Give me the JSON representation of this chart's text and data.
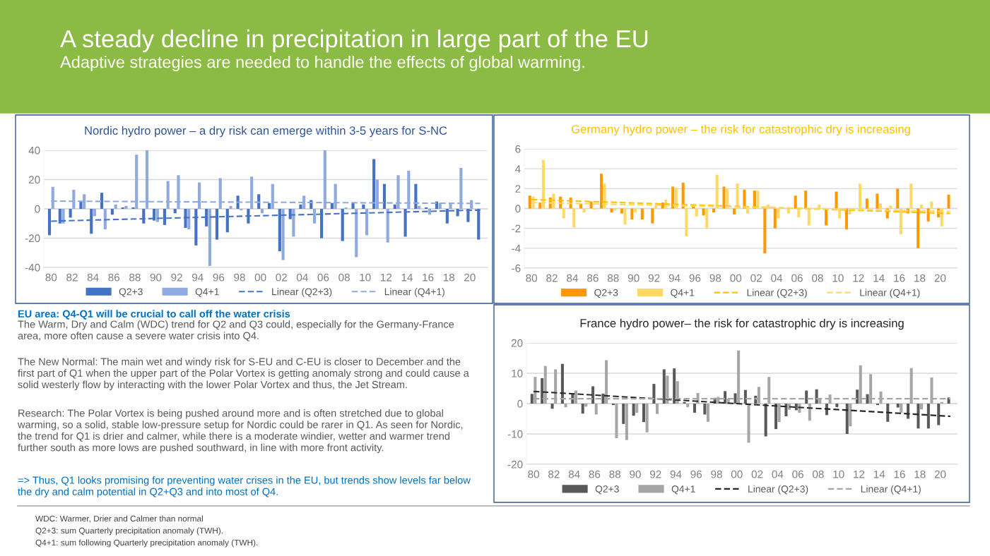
{
  "chart_data": [
    {
      "type": "other",
      "title": "A steady decline in precipitation in large part of the EU",
      "subtitle": "Adaptive strategies are needed to handle the effects of global warming."
    },
    {
      "type": "bar",
      "title": "Nordic hydro power – a dry risk can emerge within 3-5 years for S-NC",
      "categories": [
        "80",
        null,
        "82",
        null,
        "84",
        null,
        "86",
        null,
        "88",
        null,
        "90",
        null,
        "92",
        null,
        "94",
        null,
        "96",
        null,
        "98",
        null,
        "00",
        null,
        "02",
        null,
        "04",
        null,
        "06",
        null,
        "08",
        null,
        "10",
        null,
        "12",
        null,
        "14",
        null,
        "16",
        null,
        "18",
        null,
        "20",
        null
      ],
      "series": [
        {
          "name": "Q2+3",
          "color": "#4472c4",
          "values": [
            -18,
            -10,
            -6,
            5,
            -17,
            11,
            -4,
            1,
            1,
            -10,
            -8,
            -11,
            -3,
            -13,
            -25,
            -12,
            -21,
            -16,
            9,
            -10,
            10,
            4,
            -29,
            -7,
            3,
            6,
            -20,
            4,
            -22,
            4,
            3,
            34,
            17,
            3,
            -19,
            17,
            1,
            5,
            -10,
            -5,
            -9,
            -21
          ]
        },
        {
          "name": "Q4+1",
          "color": "#8faadc",
          "values": [
            15,
            -10,
            13,
            10,
            -5,
            -14,
            3,
            2,
            37,
            40,
            -9,
            19,
            23,
            -14,
            18,
            -39,
            21,
            2,
            -1,
            22,
            -3,
            17,
            -35,
            -19,
            9,
            -10,
            40,
            17,
            1,
            -33,
            -18,
            20,
            -23,
            23,
            26,
            2,
            -4,
            4,
            4,
            28,
            6,
            null
          ]
        },
        {
          "name": "Linear (Q2+3)",
          "type": "line",
          "line_style": "dashed",
          "color": "#4472c4",
          "values": [
            -8.4,
            null,
            null,
            null,
            null,
            null,
            null,
            null,
            null,
            null,
            null,
            null,
            null,
            null,
            null,
            null,
            null,
            null,
            null,
            null,
            null,
            null,
            null,
            null,
            null,
            null,
            null,
            null,
            null,
            null,
            null,
            null,
            null,
            null,
            null,
            null,
            null,
            null,
            null,
            null,
            null,
            -0.8
          ]
        },
        {
          "name": "Linear (Q4+1)",
          "type": "line",
          "line_style": "dashed",
          "color": "#8faadc",
          "values": [
            5.3,
            null,
            null,
            null,
            null,
            null,
            null,
            null,
            null,
            null,
            null,
            null,
            null,
            null,
            null,
            null,
            null,
            null,
            null,
            null,
            null,
            null,
            null,
            null,
            null,
            null,
            null,
            null,
            null,
            null,
            null,
            null,
            null,
            null,
            null,
            null,
            null,
            null,
            null,
            null,
            null,
            3.7
          ]
        }
      ],
      "ylim": [
        -40,
        40
      ],
      "yticks": [
        -40,
        -20,
        0,
        20,
        40
      ],
      "grid": "y",
      "legend": "bottom"
    },
    {
      "type": "bar",
      "title": "Germany hydro power – the risk for catastrophic dry is increasing",
      "categories": [
        "80",
        null,
        "82",
        null,
        "84",
        null,
        "86",
        null,
        "88",
        null,
        "90",
        null,
        "92",
        null,
        "94",
        null,
        "96",
        null,
        "98",
        null,
        "00",
        null,
        "02",
        null,
        "04",
        null,
        "06",
        null,
        "08",
        null,
        "10",
        null,
        "12",
        null,
        "14",
        null,
        "16",
        null,
        "18",
        null,
        "20",
        null
      ],
      "series": [
        {
          "name": "Q2+3",
          "color": "#ff9900",
          "values": [
            1.3,
            0.6,
            1.1,
            1.2,
            1.1,
            0.5,
            0.7,
            3.5,
            -0.4,
            -0.5,
            -1.1,
            -1.1,
            -1.5,
            0.6,
            2.2,
            2.6,
            0.3,
            -0.7,
            -0.4,
            2.2,
            -0.6,
            1.9,
            1.8,
            -4.5,
            -2.0,
            0,
            1.3,
            1.8,
            0,
            -1.7,
            1.7,
            -2.1,
            0,
            1.0,
            1.5,
            -1.0,
            2.0,
            -0.5,
            -4.0,
            -1.3,
            -0.9,
            1.4
          ]
        },
        {
          "name": "Q4+1",
          "color": "#ffd966",
          "values": [
            1.2,
            4.9,
            1.5,
            -1.0,
            -1.9,
            -0.4,
            -0.1,
            2.5,
            -0.2,
            -1.6,
            -0.4,
            null,
            0.3,
            0.9,
            2.1,
            -2.8,
            -0.8,
            -2.0,
            3.4,
            2.0,
            2.5,
            -0.5,
            1.8,
            0.4,
            -1.0,
            -0.5,
            -0.9,
            -1.7,
            0.4,
            null,
            -1.0,
            -0.6,
            2.5,
            null,
            0.5,
            0.3,
            -2.6,
            2.5,
            0.4,
            0.7,
            -1.8,
            null
          ]
        },
        {
          "name": "Linear (Q2+3)",
          "type": "line",
          "line_style": "dashed",
          "color": "#ffc000",
          "values": [
            0.9,
            null,
            null,
            null,
            null,
            null,
            null,
            null,
            null,
            null,
            null,
            null,
            null,
            null,
            null,
            null,
            null,
            null,
            null,
            null,
            null,
            null,
            null,
            null,
            null,
            null,
            null,
            null,
            null,
            null,
            null,
            null,
            null,
            null,
            null,
            null,
            null,
            null,
            null,
            null,
            null,
            -0.5
          ]
        },
        {
          "name": "Linear (Q4+1)",
          "type": "line",
          "line_style": "dashed",
          "color": "#ffd966",
          "values": [
            0.6,
            null,
            null,
            null,
            null,
            null,
            null,
            null,
            null,
            null,
            null,
            null,
            null,
            null,
            null,
            null,
            null,
            null,
            null,
            null,
            null,
            null,
            null,
            null,
            null,
            null,
            null,
            null,
            null,
            null,
            null,
            null,
            null,
            null,
            null,
            null,
            null,
            null,
            null,
            null,
            null,
            -0.3
          ]
        }
      ],
      "ylim": [
        -6,
        6
      ],
      "yticks": [
        -6,
        -4,
        -2,
        0,
        2,
        4,
        6
      ],
      "grid": "y",
      "legend": "bottom"
    },
    {
      "type": "other",
      "title": "EU area: Q4-Q1 will be crucial to call off the water crisis",
      "annotations": [
        "The Warm, Dry and Calm (WDC) trend for Q2 and Q3 could, especially for the Germany-France area, more often cause a severe water crisis into Q4.",
        "The New Normal: The main wet and windy risk for S-EU and C-EU is closer to December and the first part of Q1 when the upper part of the Polar Vortex is getting anomaly strong and could cause a solid westerly flow by interacting with the lower Polar Vortex and thus, the Jet Stream.",
        "Research: The Polar Vortex is being pushed around more and is often stretched due to global warming, so a solid, stable low-pressure setup for Nordic could be rarer in Q1. As seen for Nordic, the trend for Q1 is drier and calmer, while there is a moderate windier, wetter and warmer trend further south as more lows are pushed southward, in line with more front activity.",
        "=> Thus, Q1 looks promising for preventing water crises in the EU, but trends show levels far below the dry and calm potential in Q2+Q3 and into most of Q4."
      ]
    },
    {
      "type": "bar",
      "title": "France hydro power– the risk for catastrophic dry is increasing",
      "categories": [
        "80",
        null,
        "82",
        null,
        "84",
        null,
        "86",
        null,
        "88",
        null,
        "90",
        null,
        "92",
        null,
        "94",
        null,
        "96",
        null,
        "98",
        null,
        "00",
        null,
        "02",
        null,
        "04",
        null,
        "06",
        null,
        "08",
        null,
        "10",
        null,
        "12",
        null,
        "14",
        null,
        "16",
        null,
        "18",
        null,
        "20",
        null
      ],
      "series": [
        {
          "name": "Q2+3",
          "color": "#595959",
          "values": [
            3.2,
            8.4,
            -1.7,
            13.1,
            3.3,
            -3.3,
            5.7,
            3.3,
            -0.5,
            -6.7,
            -4,
            -6.1,
            6.5,
            11.3,
            11.6,
            0.5,
            -3.0,
            -3.6,
            1.9,
            4.1,
            3.4,
            4.5,
            2.6,
            -10.8,
            -8.4,
            -4.2,
            -2.2,
            4.3,
            4.7,
            -3.8,
            -1.2,
            -10,
            4.6,
            3.1,
            -0.5,
            -6.0,
            -1.3,
            -5.0,
            -8.2,
            -8.2,
            -7.1,
            2.0
          ]
        },
        {
          "name": "Q4+1",
          "color": "#a6a6a6",
          "values": [
            8.8,
            12.4,
            11.3,
            -1.2,
            4.3,
            -1.0,
            -3.6,
            14.3,
            -11.4,
            -12.0,
            -3,
            -9.5,
            -3.4,
            9.2,
            7.4,
            -1.2,
            3.5,
            -6.0,
            2.2,
            1.6,
            17.5,
            -12.9,
            5.5,
            8.8,
            -6.1,
            -2,
            -3,
            -5.6,
            1.8,
            3.0,
            null,
            -7.5,
            12.6,
            9.7,
            4.0,
            null,
            -3.0,
            11.7,
            -1.9,
            8.6,
            0.5,
            null
          ]
        },
        {
          "name": "Linear (Q2+3)",
          "type": "line",
          "line_style": "dashed",
          "color": "#262626",
          "values": [
            4.0,
            null,
            null,
            null,
            null,
            null,
            null,
            null,
            null,
            null,
            null,
            null,
            null,
            null,
            null,
            null,
            null,
            null,
            null,
            null,
            null,
            null,
            null,
            null,
            null,
            null,
            null,
            null,
            null,
            null,
            null,
            null,
            null,
            null,
            null,
            null,
            null,
            null,
            null,
            null,
            null,
            -4.2
          ]
        },
        {
          "name": "Linear (Q4+1)",
          "type": "line",
          "line_style": "dashed",
          "color": "#a6a6a6",
          "values": [
            1.6,
            null,
            null,
            null,
            null,
            null,
            null,
            null,
            null,
            null,
            null,
            null,
            null,
            null,
            null,
            null,
            null,
            null,
            null,
            null,
            null,
            null,
            null,
            null,
            null,
            null,
            null,
            null,
            null,
            null,
            null,
            null,
            null,
            null,
            null,
            null,
            null,
            null,
            null,
            null,
            null,
            1.6
          ]
        }
      ],
      "ylim": [
        -20,
        20
      ],
      "yticks": [
        -20,
        -10,
        0,
        10,
        20
      ],
      "grid": "y",
      "legend": "bottom"
    },
    {
      "type": "other",
      "annotations": [
        "WDC: Warmer, Drier and Calmer than normal",
        "Q2+3: sum Quarterly precipitation anomaly (TWH).",
        "Q4+1: sum following Quarterly precipitation anomaly (TWH)."
      ]
    }
  ]
}
